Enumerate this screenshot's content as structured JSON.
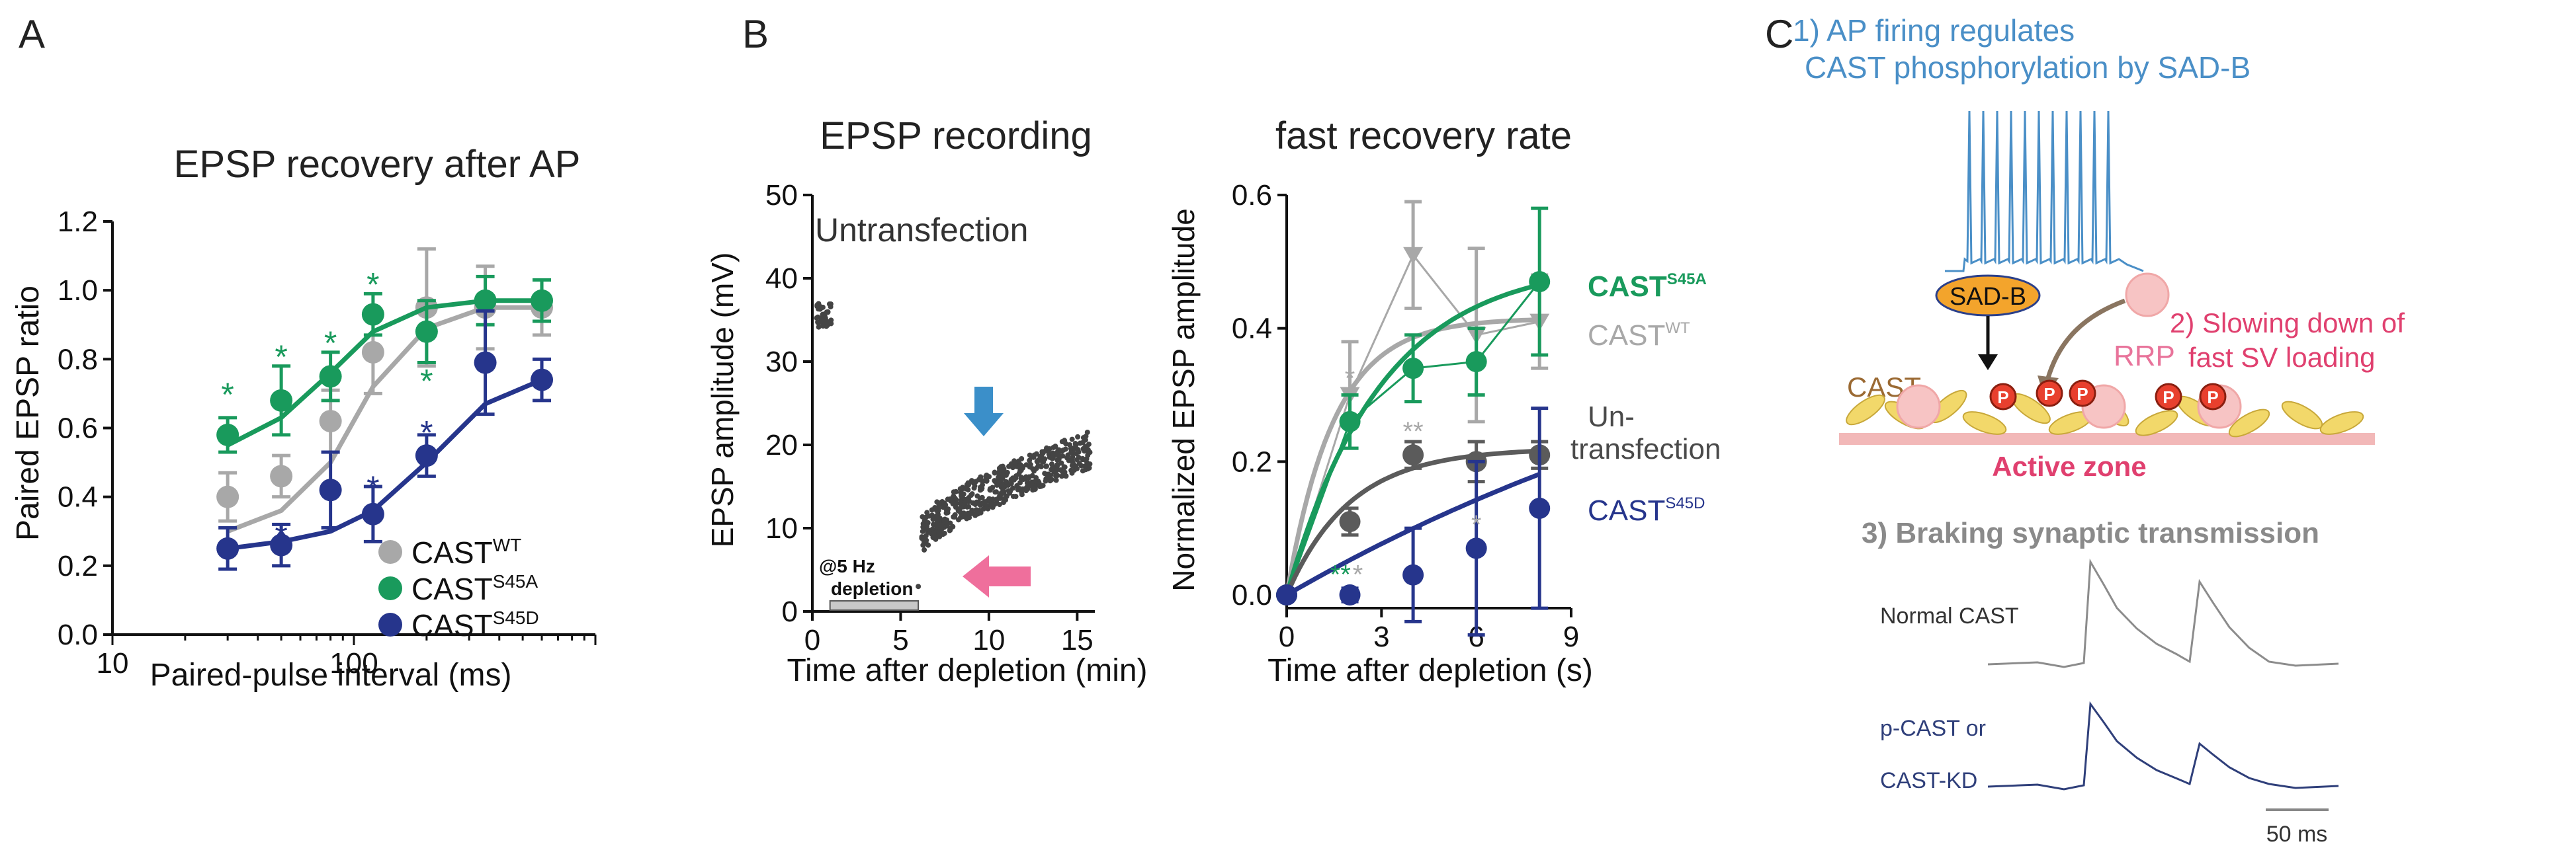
{
  "panels": {
    "A": "A",
    "B": "B",
    "C": "C"
  },
  "colors": {
    "wt": "#a8a8a8",
    "s45a": "#199a5c",
    "s45d": "#26358c",
    "untr": "#5b5b5b",
    "blue_text": "#4a8fc7",
    "pink_text": "#e0406f",
    "trace_normal": "#8c8c8c",
    "trace_p": "#2f3f7a",
    "sadb": "#f3a42c",
    "syn": "#f2b8b8",
    "vesicle": "#f7c4c4",
    "cast_brown": "#9b6a33",
    "arrow_blue": "#3b8fc9",
    "arrow_pink": "#ef6f9c"
  },
  "chart_data": [
    {
      "type": "scatter",
      "title": "EPSP recovery after AP",
      "xlabel": "Paired-pulse interval (ms)",
      "ylabel": "Paired EPSP ratio",
      "xscale": "log",
      "xlim": [
        10,
        1000
      ],
      "ylim": [
        0,
        1.2
      ],
      "xticks": [
        10,
        100
      ],
      "yticks": [
        0.0,
        0.2,
        0.4,
        0.6,
        0.8,
        1.0,
        1.2
      ],
      "legend": [
        "CAST",
        "CAST",
        "CAST"
      ],
      "legend_sup": [
        "WT",
        "S45A",
        "S45D"
      ],
      "x": [
        30,
        50,
        80,
        120,
        200,
        350,
        600
      ],
      "series": [
        {
          "name": "CASTWT",
          "key": "wt",
          "values": [
            0.4,
            0.46,
            0.62,
            0.82,
            0.95,
            0.95,
            0.95
          ],
          "err": [
            0.07,
            0.06,
            0.09,
            0.12,
            0.17,
            0.12,
            0.08
          ],
          "fit": [
            0.3,
            0.36,
            0.5,
            0.72,
            0.89,
            0.95,
            0.95
          ]
        },
        {
          "name": "CASTS45A",
          "key": "s45a",
          "values": [
            0.58,
            0.68,
            0.75,
            0.93,
            0.88,
            0.97,
            0.97
          ],
          "err": [
            0.05,
            0.1,
            0.07,
            0.06,
            0.09,
            0.07,
            0.06
          ],
          "fit": [
            0.55,
            0.63,
            0.76,
            0.88,
            0.95,
            0.97,
            0.97
          ]
        },
        {
          "name": "CASTS45D",
          "key": "s45d",
          "values": [
            0.25,
            0.26,
            0.42,
            0.35,
            0.52,
            0.79,
            0.74
          ],
          "err": [
            0.06,
            0.06,
            0.11,
            0.08,
            0.06,
            0.15,
            0.06
          ],
          "fit": [
            0.25,
            0.27,
            0.3,
            0.36,
            0.5,
            0.67,
            0.74
          ]
        }
      ],
      "stars": [
        {
          "x": 30,
          "y": 0.71,
          "key": "s45a"
        },
        {
          "x": 50,
          "y": 0.82,
          "key": "s45a"
        },
        {
          "x": 80,
          "y": 0.86,
          "key": "s45a"
        },
        {
          "x": 120,
          "y": 1.03,
          "key": "s45a"
        },
        {
          "x": 200,
          "y": 0.75,
          "key": "s45a"
        },
        {
          "x": 50,
          "y": 0.3,
          "key": "s45d"
        },
        {
          "x": 120,
          "y": 0.44,
          "key": "s45d"
        },
        {
          "x": 200,
          "y": 0.6,
          "key": "s45d"
        }
      ]
    },
    {
      "type": "scatter",
      "title": "EPSP recording",
      "xlabel": "Time after depletion (min)",
      "ylabel": "EPSP amplitude  (mV)",
      "xlim": [
        0,
        16
      ],
      "ylim": [
        0,
        50
      ],
      "xticks": [
        0,
        5,
        10,
        15
      ],
      "yticks": [
        0,
        10,
        20,
        30,
        40,
        50
      ],
      "annotation": "Untransfection",
      "depletion_label": "@5 Hz\ndepletion",
      "depletion_interval": [
        1,
        6
      ],
      "baseline": {
        "x0": 0.2,
        "x1": 1.1,
        "y0": 34,
        "y1": 37
      },
      "recovery": {
        "x0": 6.2,
        "x1": 15.8,
        "y0": 9,
        "y1": 19.5
      }
    },
    {
      "type": "line",
      "title": "fast recovery rate",
      "xlabel": "Time after depletion (s)",
      "ylabel": "Normalized EPSP amplitude",
      "xlim": [
        0,
        9
      ],
      "ylim": [
        0,
        0.6
      ],
      "xticks": [
        0,
        3,
        6,
        9
      ],
      "yticks": [
        0.0,
        0.2,
        0.4,
        0.6
      ],
      "x": [
        0,
        2,
        4,
        6,
        8
      ],
      "series": [
        {
          "name": "CASTWT",
          "key": "wt",
          "values": [
            0,
            0.3,
            0.51,
            0.39,
            0.41
          ],
          "err": [
            0,
            0.08,
            0.08,
            0.13,
            0.07
          ],
          "tau": 1.5,
          "plateau": 0.415
        },
        {
          "name": "CASTS45A",
          "key": "s45a",
          "values": [
            0,
            0.26,
            0.34,
            0.35,
            0.47
          ],
          "err": [
            0,
            0.04,
            0.05,
            0.05,
            0.11
          ],
          "tau": 3.0,
          "plateau": 0.5
        },
        {
          "name": "Un-transfection",
          "key": "untr",
          "values": [
            0,
            0.11,
            0.21,
            0.2,
            0.21
          ],
          "err": [
            0,
            0.02,
            0.02,
            0.03,
            0.02
          ],
          "tau": 2.0,
          "plateau": 0.22
        },
        {
          "name": "CASTS45D",
          "key": "s45d",
          "values": [
            0,
            0.0,
            0.03,
            0.07,
            0.13
          ],
          "err": [
            0,
            0.01,
            0.07,
            0.13,
            0.15
          ],
          "tau": 20,
          "plateau": 0.55
        }
      ],
      "labels": {
        "s45a": {
          "base": "CAST",
          "sup": "S45A"
        },
        "wt": {
          "base": "CAST",
          "sup": "WT"
        },
        "untr": {
          "line1": "Un-",
          "line2": "transfection"
        },
        "s45d": {
          "base": "CAST",
          "sup": "S45D"
        }
      },
      "stars": [
        {
          "x": 2,
          "y": 0.33,
          "text": "*",
          "key": "wt"
        },
        {
          "x": 4,
          "y": 0.25,
          "text": "**",
          "key": "wt"
        },
        {
          "x": 6,
          "y": 0.11,
          "text": "*",
          "key": "wt"
        },
        {
          "x": 1.7,
          "y": 0.035,
          "text": "**",
          "key": "s45a"
        },
        {
          "x": 2.25,
          "y": 0.035,
          "text": "*",
          "key": "wt"
        }
      ]
    }
  ],
  "schematic": {
    "step1_line1": "1) AP firing regulates",
    "step1_line2": "CAST phosphorylation by SAD-B",
    "sadb": "SAD-B",
    "rrp": "RRP",
    "cast": "CAST",
    "p": "P",
    "step2_line1": "2) Slowing down of",
    "step2_line2": "fast SV loading",
    "active_zone": "Active zone",
    "step3": "3) Braking synaptic transmission",
    "normal": "Normal CAST",
    "pcast_line1": "p-CAST or",
    "pcast_line2": "CAST-KD",
    "scale": "50 ms"
  }
}
